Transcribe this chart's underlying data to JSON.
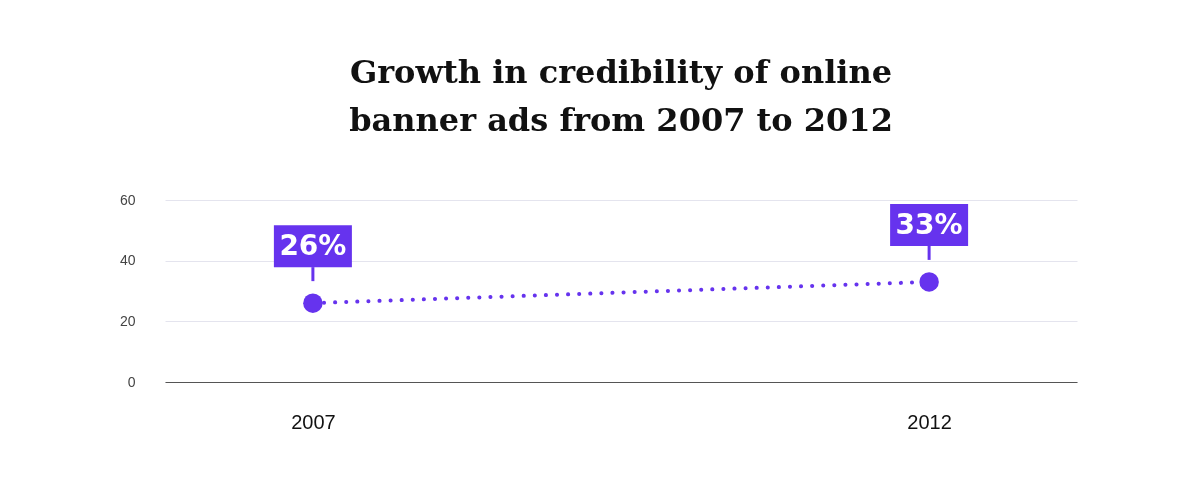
{
  "chart_data": {
    "type": "line",
    "title": "Growth in credibility of online banner ads from 2007 to 2012",
    "categories": [
      "2007",
      "2012"
    ],
    "series": [
      {
        "color": "#6633ee",
        "values": [
          26,
          33
        ]
      }
    ],
    "value_labels": [
      "26%",
      "33%"
    ],
    "ylim": [
      0,
      60
    ],
    "yticks": [
      0,
      20,
      40,
      60
    ],
    "grid": "y",
    "marker": "circle",
    "line_style": "dotted",
    "legend": false
  }
}
